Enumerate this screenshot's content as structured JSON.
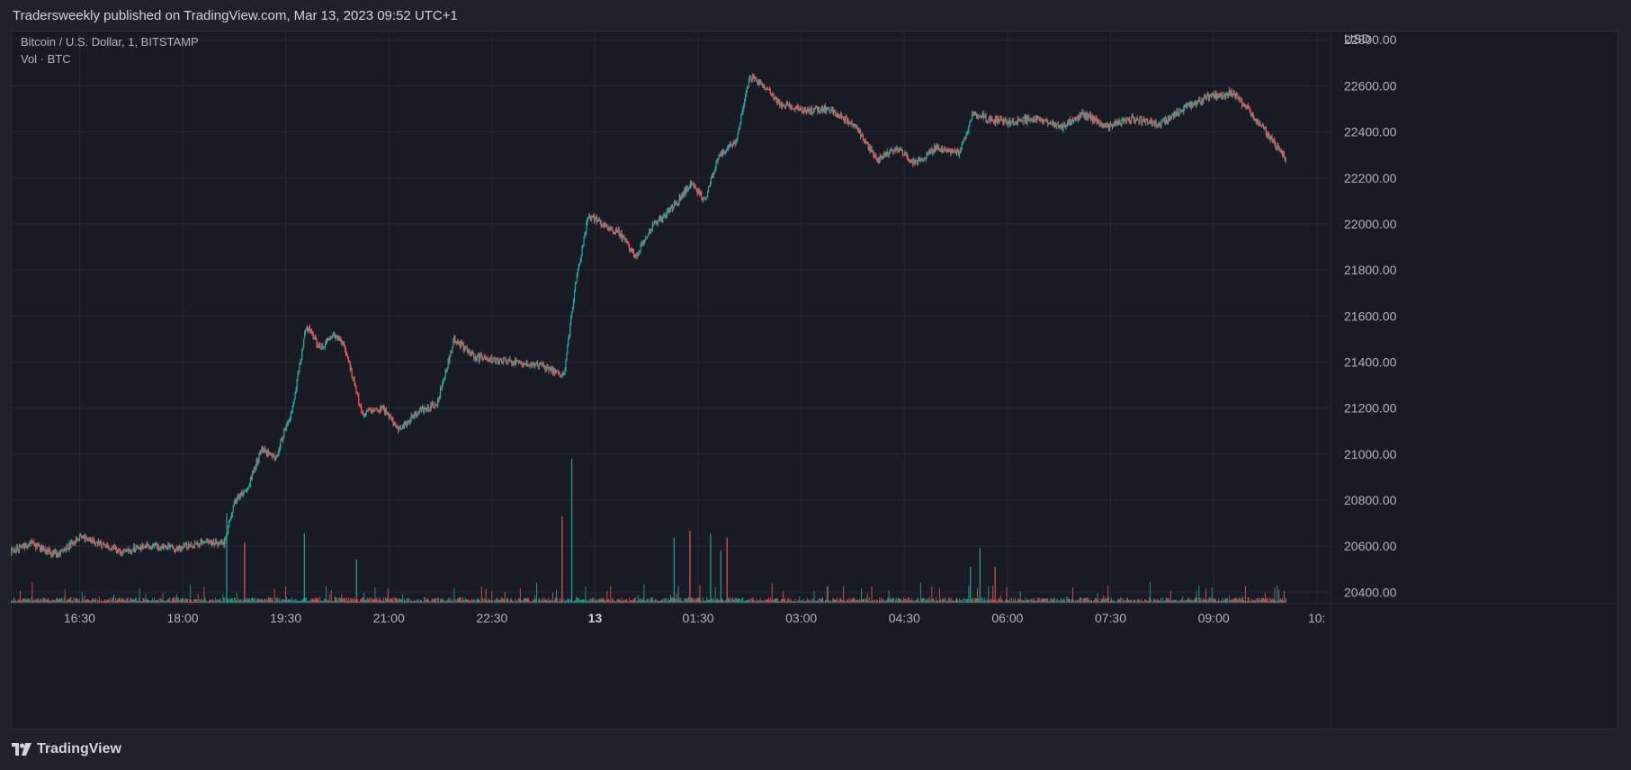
{
  "header": {
    "published_line": "Tradersweekly published on TradingView.com, Mar 13, 2023 09:52 UTC+1"
  },
  "legend": {
    "symbol_line": "Bitcoin / U.S. Dollar, 1, BITSTAMP",
    "volume_line": "Vol · BTC"
  },
  "footer": {
    "brand": "TradingView"
  },
  "colors": {
    "up": "#26a69a",
    "down": "#ef5350",
    "grid": "#252936",
    "background": "#181b25"
  },
  "chart_data": {
    "type": "candlestick",
    "title": "Bitcoin / U.S. Dollar, 1, BITSTAMP",
    "currency_label": "USD",
    "y_ticks": [
      "22800.00",
      "22600.00",
      "22400.00",
      "22200.00",
      "22000.00",
      "21800.00",
      "21600.00",
      "21400.00",
      "21200.00",
      "21000.00",
      "20800.00",
      "20600.00",
      "20400.00"
    ],
    "ylim": [
      20300,
      22840
    ],
    "x_ticks": [
      {
        "label": "16:30",
        "t": 1
      },
      {
        "label": "18:00",
        "t": 2.5
      },
      {
        "label": "19:30",
        "t": 4
      },
      {
        "label": "21:00",
        "t": 5.5
      },
      {
        "label": "22:30",
        "t": 7
      },
      {
        "label": "13",
        "t": 8.5,
        "bold": true
      },
      {
        "label": "01:30",
        "t": 10
      },
      {
        "label": "03:00",
        "t": 11.5
      },
      {
        "label": "04:30",
        "t": 13
      },
      {
        "label": "06:00",
        "t": 14.5
      },
      {
        "label": "07:30",
        "t": 16
      },
      {
        "label": "09:00",
        "t": 17.5
      },
      {
        "label": "10:",
        "t": 19
      }
    ],
    "x_range_hours": [
      0,
      19.2
    ],
    "price_path": [
      {
        "t": 0.0,
        "p": 20580
      },
      {
        "t": 0.3,
        "p": 20610
      },
      {
        "t": 0.7,
        "p": 20560
      },
      {
        "t": 1.0,
        "p": 20640
      },
      {
        "t": 1.3,
        "p": 20610
      },
      {
        "t": 1.6,
        "p": 20580
      },
      {
        "t": 2.0,
        "p": 20600
      },
      {
        "t": 2.4,
        "p": 20590
      },
      {
        "t": 2.8,
        "p": 20620
      },
      {
        "t": 3.1,
        "p": 20610
      },
      {
        "t": 3.25,
        "p": 20790
      },
      {
        "t": 3.45,
        "p": 20860
      },
      {
        "t": 3.65,
        "p": 21020
      },
      {
        "t": 3.85,
        "p": 20980
      },
      {
        "t": 4.1,
        "p": 21200
      },
      {
        "t": 4.3,
        "p": 21560
      },
      {
        "t": 4.5,
        "p": 21460
      },
      {
        "t": 4.7,
        "p": 21520
      },
      {
        "t": 4.85,
        "p": 21480
      },
      {
        "t": 5.1,
        "p": 21180
      },
      {
        "t": 5.4,
        "p": 21200
      },
      {
        "t": 5.65,
        "p": 21100
      },
      {
        "t": 5.9,
        "p": 21180
      },
      {
        "t": 6.2,
        "p": 21220
      },
      {
        "t": 6.45,
        "p": 21500
      },
      {
        "t": 6.75,
        "p": 21420
      },
      {
        "t": 7.0,
        "p": 21410
      },
      {
        "t": 7.35,
        "p": 21400
      },
      {
        "t": 7.75,
        "p": 21380
      },
      {
        "t": 8.05,
        "p": 21340
      },
      {
        "t": 8.2,
        "p": 21710
      },
      {
        "t": 8.4,
        "p": 22040
      },
      {
        "t": 8.6,
        "p": 22000
      },
      {
        "t": 8.85,
        "p": 21960
      },
      {
        "t": 9.1,
        "p": 21860
      },
      {
        "t": 9.35,
        "p": 22000
      },
      {
        "t": 9.6,
        "p": 22060
      },
      {
        "t": 9.9,
        "p": 22180
      },
      {
        "t": 10.1,
        "p": 22100
      },
      {
        "t": 10.3,
        "p": 22300
      },
      {
        "t": 10.55,
        "p": 22360
      },
      {
        "t": 10.75,
        "p": 22640
      },
      {
        "t": 10.95,
        "p": 22600
      },
      {
        "t": 11.2,
        "p": 22520
      },
      {
        "t": 11.55,
        "p": 22490
      },
      {
        "t": 11.9,
        "p": 22500
      },
      {
        "t": 12.3,
        "p": 22420
      },
      {
        "t": 12.6,
        "p": 22280
      },
      {
        "t": 12.9,
        "p": 22330
      },
      {
        "t": 13.15,
        "p": 22260
      },
      {
        "t": 13.45,
        "p": 22330
      },
      {
        "t": 13.8,
        "p": 22310
      },
      {
        "t": 14.0,
        "p": 22480
      },
      {
        "t": 14.3,
        "p": 22450
      },
      {
        "t": 14.6,
        "p": 22440
      },
      {
        "t": 14.9,
        "p": 22460
      },
      {
        "t": 15.3,
        "p": 22420
      },
      {
        "t": 15.6,
        "p": 22480
      },
      {
        "t": 15.95,
        "p": 22420
      },
      {
        "t": 16.3,
        "p": 22460
      },
      {
        "t": 16.7,
        "p": 22430
      },
      {
        "t": 17.05,
        "p": 22500
      },
      {
        "t": 17.4,
        "p": 22550
      },
      {
        "t": 17.75,
        "p": 22570
      },
      {
        "t": 18.0,
        "p": 22500
      },
      {
        "t": 18.25,
        "p": 22400
      },
      {
        "t": 18.55,
        "p": 22280
      }
    ],
    "volume_spikes": [
      {
        "t": 3.14,
        "v": 0.62
      },
      {
        "t": 3.4,
        "v": 0.42
      },
      {
        "t": 4.27,
        "v": 0.48
      },
      {
        "t": 5.03,
        "v": 0.3
      },
      {
        "t": 8.02,
        "v": 0.6
      },
      {
        "t": 8.16,
        "v": 1.0
      },
      {
        "t": 10.18,
        "v": 0.48
      },
      {
        "t": 10.42,
        "v": 0.45
      },
      {
        "t": 10.33,
        "v": 0.36
      },
      {
        "t": 9.65,
        "v": 0.45
      },
      {
        "t": 9.88,
        "v": 0.5
      },
      {
        "t": 13.96,
        "v": 0.25
      },
      {
        "t": 14.1,
        "v": 0.38
      },
      {
        "t": 14.32,
        "v": 0.25
      }
    ]
  }
}
